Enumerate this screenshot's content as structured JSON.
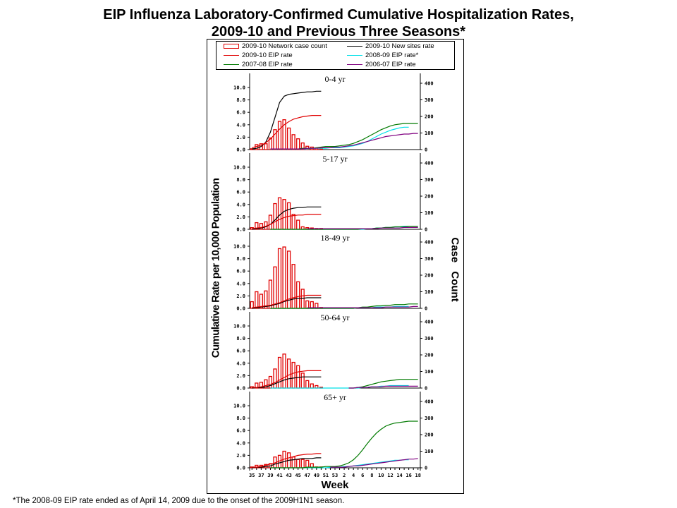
{
  "title_line1": "EIP Influenza Laboratory-Confirmed Cumulative Hospitalization Rates,",
  "title_line2": "2009-10 and Previous Three Seasons*",
  "legend": [
    {
      "label": "2009-10 Network case count",
      "color": "#e00000",
      "kind": "box"
    },
    {
      "label": "2009-10 New sites rate",
      "color": "#000000",
      "kind": "line"
    },
    {
      "label": "2009-10 EIP rate",
      "color": "#e00000",
      "kind": "line"
    },
    {
      "label": "2008-09 EIP rate*",
      "color": "#00e0e8",
      "kind": "line"
    },
    {
      "label": "2007-08 EIP rate",
      "color": "#007a00",
      "kind": "line"
    },
    {
      "label": "2006-07 EIP rate",
      "color": "#800080",
      "kind": "line"
    }
  ],
  "ylabel_left": "Cumulative Rate per 10,000 Population",
  "ylabel_right": "Case Count",
  "xlabel": "Week",
  "footnote": "*The 2008-09 EIP rate ended as of April 14, 2009 due to the onset of the 2009H1N1 season.",
  "chart_data": {
    "type": "bar+line",
    "title": "EIP Influenza Laboratory-Confirmed Cumulative Hospitalization Rates, 2009-10 and Previous Three Seasons*",
    "xlabel": "Week",
    "ylabel": "Cumulative Rate per 10,000 Population",
    "ylabel_right": "Case Count",
    "ylim": [
      0,
      10
    ],
    "ylim_right": [
      0,
      450
    ],
    "yticks": [
      "0.0",
      "2.0",
      "4.0",
      "6.0",
      "8.0",
      "10.0"
    ],
    "yticks_right": [
      "0",
      "100",
      "200",
      "300",
      "400"
    ],
    "week_sequence": [
      35,
      36,
      37,
      38,
      39,
      40,
      41,
      42,
      43,
      44,
      45,
      46,
      47,
      48,
      49,
      50,
      51,
      52,
      53,
      1,
      2,
      3,
      4,
      5,
      6,
      7,
      8,
      9,
      10,
      11,
      12,
      13,
      14,
      15,
      16,
      17,
      18
    ],
    "xtick_labels": [
      "35",
      "37",
      "39",
      "41",
      "43",
      "45",
      "47",
      "49",
      "51",
      "53",
      "2",
      "4",
      "6",
      "8",
      "10",
      "12",
      "14",
      "16",
      "18"
    ],
    "panels": [
      {
        "title": "0-4 yr",
        "case_counts": [
          5,
          30,
          35,
          35,
          70,
          120,
          170,
          180,
          130,
          90,
          65,
          40,
          20,
          15,
          10,
          5
        ],
        "series": [
          {
            "name": "2009-10 New sites rate",
            "values": [
              0.1,
              0.2,
              0.5,
              1.2,
              2.8,
              5.2,
              7.6,
              8.6,
              8.9,
              9.0,
              9.1,
              9.2,
              9.3,
              9.3,
              9.4,
              9.4
            ]
          },
          {
            "name": "2009-10 EIP rate",
            "values": [
              0.3,
              0.5,
              0.7,
              1.1,
              1.7,
              2.5,
              3.3,
              4.0,
              4.5,
              4.9,
              5.1,
              5.3,
              5.4,
              5.5,
              5.5,
              5.5
            ]
          },
          {
            "name": "2008-09 EIP rate*",
            "values": [
              null,
              null,
              null,
              null,
              0.1,
              0.1,
              0.1,
              0.1,
              0.1,
              0.1,
              0.1,
              0.1,
              0.1,
              0.2,
              0.2,
              0.2,
              0.2,
              0.3,
              0.3,
              0.3,
              0.4,
              0.5,
              0.6,
              0.8,
              1.0,
              1.3,
              1.7,
              2.1,
              2.5,
              2.8,
              3.1,
              3.3,
              3.5,
              3.6,
              3.6
            ]
          },
          {
            "name": "2007-08 EIP rate",
            "values": [
              null,
              null,
              null,
              null,
              0.1,
              0.1,
              0.1,
              0.1,
              0.1,
              0.1,
              0.1,
              0.2,
              0.2,
              0.2,
              0.3,
              0.4,
              0.5,
              0.5,
              0.5,
              0.6,
              0.7,
              0.8,
              1.0,
              1.3,
              1.6,
              2.0,
              2.4,
              2.8,
              3.2,
              3.5,
              3.8,
              4.0,
              4.1,
              4.2,
              4.2,
              4.2,
              4.2
            ]
          },
          {
            "name": "2006-07 EIP rate",
            "values": [
              null,
              null,
              null,
              null,
              0.1,
              0.1,
              0.1,
              0.1,
              0.1,
              0.1,
              0.1,
              0.1,
              0.2,
              0.2,
              0.2,
              0.3,
              0.3,
              0.3,
              0.4,
              0.4,
              0.5,
              0.6,
              0.7,
              0.9,
              1.1,
              1.3,
              1.5,
              1.7,
              1.9,
              2.1,
              2.2,
              2.3,
              2.4,
              2.5,
              2.5,
              2.6,
              2.6
            ]
          }
        ]
      },
      {
        "title": "5-17 yr",
        "case_counts": [
          10,
          40,
          35,
          45,
          85,
          155,
          190,
          180,
          160,
          90,
          55,
          15,
          10,
          8,
          5,
          5
        ],
        "series": [
          {
            "name": "2009-10 New sites rate",
            "values": [
              0.0,
              0.1,
              0.2,
              0.4,
              0.8,
              1.5,
              2.3,
              2.9,
              3.2,
              3.4,
              3.5,
              3.5,
              3.6,
              3.6,
              3.6,
              3.6
            ]
          },
          {
            "name": "2009-10 EIP rate",
            "values": [
              0.1,
              0.2,
              0.3,
              0.5,
              0.8,
              1.2,
              1.6,
              1.9,
              2.1,
              2.2,
              2.3,
              2.3,
              2.4,
              2.4,
              2.4,
              2.4
            ]
          },
          {
            "name": "2008-09 EIP rate*",
            "values": [
              null,
              null,
              null,
              null,
              0.0,
              0.0,
              0.0,
              0.0,
              0.0,
              0.0,
              0.0,
              0.0,
              0.0,
              0.0,
              0.0,
              0.0,
              0.0,
              0.0,
              0.0,
              0.0,
              0.0,
              0.0,
              0.0,
              0.0,
              0.0,
              0.1,
              0.1,
              0.2,
              0.2,
              0.3,
              0.3,
              0.4,
              0.4,
              0.5,
              0.5
            ]
          },
          {
            "name": "2007-08 EIP rate",
            "values": [
              null,
              null,
              null,
              null,
              0.0,
              0.0,
              0.0,
              0.0,
              0.0,
              0.0,
              0.0,
              0.0,
              0.0,
              0.0,
              0.0,
              0.0,
              0.0,
              0.0,
              0.0,
              0.0,
              0.0,
              0.0,
              0.0,
              0.0,
              0.1,
              0.1,
              0.1,
              0.2,
              0.2,
              0.3,
              0.3,
              0.4,
              0.4,
              0.4,
              0.5,
              0.5,
              0.5
            ]
          },
          {
            "name": "2006-07 EIP rate",
            "values": [
              null,
              null,
              null,
              null,
              null,
              null,
              null,
              null,
              null,
              null,
              null,
              null,
              0.1,
              0.1,
              0.1,
              0.1,
              0.1,
              0.1,
              0.1,
              0.1,
              0.1,
              0.1,
              0.1,
              0.1,
              0.1,
              0.1,
              0.1,
              0.1,
              0.2,
              0.2,
              0.2,
              0.2,
              0.2,
              0.3,
              0.3,
              0.3,
              0.3
            ]
          }
        ]
      },
      {
        "title": "18-49 yr",
        "case_counts": [
          40,
          100,
          85,
          105,
          170,
          250,
          360,
          370,
          345,
          265,
          160,
          115,
          45,
          40,
          30,
          5
        ],
        "series": [
          {
            "name": "2009-10 New sites rate",
            "values": [
              0.0,
              0.1,
              0.2,
              0.3,
              0.4,
              0.6,
              0.8,
              1.1,
              1.3,
              1.5,
              1.6,
              1.6,
              1.7,
              1.7,
              1.7,
              1.7
            ]
          },
          {
            "name": "2009-10 EIP rate",
            "values": [
              0.1,
              0.2,
              0.3,
              0.4,
              0.5,
              0.7,
              0.9,
              1.2,
              1.5,
              1.7,
              1.9,
              2.0,
              2.1,
              2.1,
              2.1,
              2.1
            ]
          },
          {
            "name": "2008-09 EIP rate*",
            "values": [
              null,
              null,
              null,
              null,
              0.0,
              0.0,
              0.0,
              0.0,
              0.0,
              0.0,
              0.0,
              0.0,
              0.0,
              0.0,
              0.0,
              0.0,
              0.0,
              0.0,
              0.0,
              0.0,
              0.0,
              0.0,
              0.0,
              0.1,
              0.1,
              0.1,
              0.1,
              0.2,
              0.2,
              0.2,
              0.2,
              0.3,
              0.3,
              0.3,
              0.3
            ]
          },
          {
            "name": "2007-08 EIP rate",
            "values": [
              null,
              null,
              null,
              null,
              0.0,
              0.0,
              0.0,
              0.0,
              0.0,
              0.0,
              0.0,
              0.0,
              0.0,
              0.0,
              0.0,
              0.0,
              0.0,
              0.0,
              0.0,
              0.0,
              0.0,
              0.0,
              0.0,
              0.1,
              0.2,
              0.2,
              0.3,
              0.4,
              0.4,
              0.5,
              0.5,
              0.6,
              0.6,
              0.6,
              0.7,
              0.7,
              0.7
            ]
          },
          {
            "name": "2006-07 EIP rate",
            "values": [
              null,
              null,
              null,
              null,
              null,
              null,
              null,
              null,
              null,
              null,
              null,
              null,
              0.1,
              0.1,
              0.1,
              0.1,
              0.1,
              0.1,
              0.1,
              0.1,
              0.1,
              0.1,
              0.1,
              0.1,
              0.1,
              0.1,
              0.1,
              0.1,
              0.1,
              0.2,
              0.2,
              0.2,
              0.2,
              0.2,
              0.2,
              0.3,
              0.3
            ]
          }
        ]
      },
      {
        "title": "50-64 yr",
        "case_counts": [
          8,
          30,
          35,
          50,
          70,
          115,
          185,
          205,
          175,
          155,
          135,
          90,
          45,
          25,
          15,
          5
        ],
        "series": [
          {
            "name": "2009-10 New sites rate",
            "values": [
              0.0,
              0.1,
              0.1,
              0.2,
              0.4,
              0.7,
              1.0,
              1.3,
              1.5,
              1.6,
              1.7,
              1.8,
              1.8,
              1.8,
              1.8,
              1.8
            ]
          },
          {
            "name": "2009-10 EIP rate",
            "values": [
              0.1,
              0.1,
              0.2,
              0.4,
              0.6,
              0.9,
              1.3,
              1.7,
              2.1,
              2.4,
              2.6,
              2.7,
              2.8,
              2.8,
              2.8,
              2.8
            ]
          },
          {
            "name": "2008-09 EIP rate*",
            "values": [
              null,
              null,
              null,
              null,
              0.0,
              0.0,
              0.0,
              0.0,
              0.0,
              0.0,
              0.0,
              0.0,
              0.0,
              0.0,
              0.0,
              0.0,
              0.0,
              0.0,
              0.0,
              0.0,
              0.0,
              0.0,
              0.0,
              0.0,
              0.1,
              0.1,
              0.2,
              0.2,
              0.3,
              0.3,
              0.4,
              0.4,
              0.4,
              0.4,
              0.4
            ]
          },
          {
            "name": "2007-08 EIP rate",
            "values": [
              null,
              null,
              null,
              null,
              null,
              null,
              null,
              null,
              null,
              null,
              null,
              null,
              null,
              null,
              null,
              null,
              null,
              null,
              null,
              null,
              null,
              0.0,
              0.0,
              0.1,
              0.2,
              0.4,
              0.6,
              0.8,
              1.0,
              1.1,
              1.2,
              1.3,
              1.4,
              1.4,
              1.4,
              1.4,
              1.4
            ]
          },
          {
            "name": "2006-07 EIP rate",
            "values": [
              null,
              null,
              null,
              null,
              null,
              null,
              null,
              null,
              null,
              null,
              null,
              null,
              null,
              null,
              null,
              null,
              null,
              null,
              null,
              null,
              null,
              0.0,
              0.0,
              0.1,
              0.1,
              0.1,
              0.2,
              0.2,
              0.2,
              0.3,
              0.3,
              0.3,
              0.3,
              0.3,
              0.3,
              0.3,
              0.3
            ]
          }
        ]
      },
      {
        "title": "65+ yr",
        "case_counts": [
          5,
          15,
          15,
          20,
          25,
          65,
          75,
          100,
          90,
          65,
          50,
          50,
          45,
          25,
          5,
          5
        ],
        "series": [
          {
            "name": "2009-10 New sites rate",
            "values": [
              0.0,
              0.1,
              0.1,
              0.2,
              0.3,
              0.6,
              0.8,
              1.0,
              1.2,
              1.3,
              1.4,
              1.5,
              1.5,
              1.5,
              1.6,
              1.6
            ]
          },
          {
            "name": "2009-10 EIP rate",
            "values": [
              0.1,
              0.1,
              0.2,
              0.4,
              0.6,
              0.8,
              1.1,
              1.4,
              1.6,
              1.8,
              2.0,
              2.1,
              2.2,
              2.2,
              2.3,
              2.3
            ]
          },
          {
            "name": "2008-09 EIP rate*",
            "values": [
              null,
              null,
              null,
              null,
              0.0,
              0.0,
              0.0,
              0.0,
              0.0,
              0.0,
              0.0,
              0.0,
              0.0,
              0.0,
              0.0,
              0.0,
              0.0,
              0.1,
              0.1,
              0.1,
              0.2,
              0.2,
              0.3,
              0.4,
              0.5,
              0.6,
              0.7,
              0.8,
              0.9,
              1.0,
              1.1,
              1.2,
              1.2,
              1.3,
              1.3
            ]
          },
          {
            "name": "2007-08 EIP rate",
            "values": [
              null,
              null,
              null,
              null,
              0.0,
              0.0,
              0.0,
              0.0,
              0.0,
              0.0,
              0.0,
              0.0,
              0.1,
              0.1,
              0.1,
              0.1,
              0.2,
              0.2,
              0.2,
              0.3,
              0.5,
              0.8,
              1.3,
              2.0,
              2.9,
              3.9,
              4.8,
              5.6,
              6.2,
              6.7,
              7.0,
              7.2,
              7.3,
              7.4,
              7.5,
              7.5,
              7.5
            ]
          },
          {
            "name": "2006-07 EIP rate",
            "values": [
              null,
              null,
              null,
              null,
              null,
              null,
              null,
              null,
              null,
              null,
              null,
              null,
              null,
              null,
              null,
              null,
              null,
              0.1,
              0.1,
              0.1,
              0.1,
              0.2,
              0.3,
              0.3,
              0.4,
              0.5,
              0.6,
              0.7,
              0.8,
              0.9,
              1.0,
              1.1,
              1.2,
              1.3,
              1.4,
              1.4,
              1.5
            ]
          }
        ]
      }
    ]
  }
}
